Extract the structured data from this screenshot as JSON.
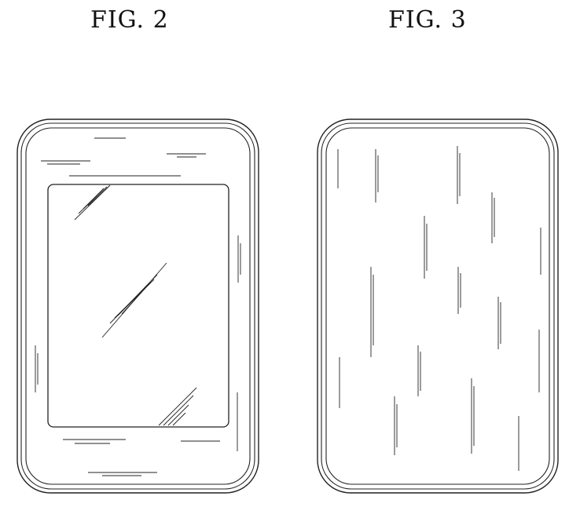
{
  "figures": [
    {
      "label": "FIG. 2",
      "view": "front"
    },
    {
      "label": "FIG. 3",
      "view": "back"
    }
  ],
  "colors": {
    "line": "#222222",
    "background": "#ffffff"
  }
}
